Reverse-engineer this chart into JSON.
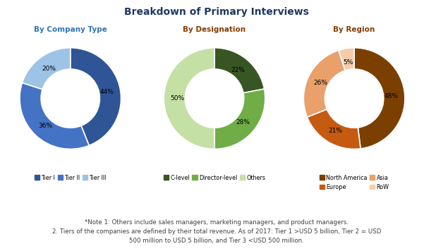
{
  "title": "Breakdown of Primary Interviews",
  "title_color": "#1F3864",
  "title_fontsize": 10,
  "chart1_title": "By Company Type",
  "chart1_title_color": "#2E75B6",
  "chart1_values": [
    44,
    36,
    20
  ],
  "chart1_labels": [
    "44%",
    "36%",
    "20%"
  ],
  "chart1_colors": [
    "#2F5597",
    "#4472C4",
    "#9DC3E6"
  ],
  "chart1_legend": [
    "Tier I",
    "Tier II",
    "Tier III"
  ],
  "chart2_title": "By Designation",
  "chart2_title_color": "#833C00",
  "chart2_values": [
    22,
    28,
    50
  ],
  "chart2_labels": [
    "22%",
    "28%",
    "50%"
  ],
  "chart2_colors": [
    "#375623",
    "#70AD47",
    "#C5E0A5"
  ],
  "chart2_legend": [
    "C-level",
    "Director-level",
    "Others"
  ],
  "chart3_title": "By Region",
  "chart3_title_color": "#833C00",
  "chart3_values": [
    48,
    21,
    26,
    5
  ],
  "chart3_labels": [
    "48%",
    "21%",
    "26%",
    "5%"
  ],
  "chart3_colors": [
    "#7B3F00",
    "#C55A11",
    "#E9A06A",
    "#F4CCAA"
  ],
  "chart3_legend": [
    "North America",
    "Europe",
    "Asia",
    "RoW"
  ],
  "note_text": "*Note 1: Others include sales managers, marketing managers, and product managers.\n2. Tiers of the companies are defined by their total revenue. As of 2017: Tier 1 >USD 5 billion, Tier 2 = USD\n500 million to USD 5 billion, and Tier 3 <USD 500 million.",
  "note_fontsize": 6.2,
  "note_color": "#404040"
}
